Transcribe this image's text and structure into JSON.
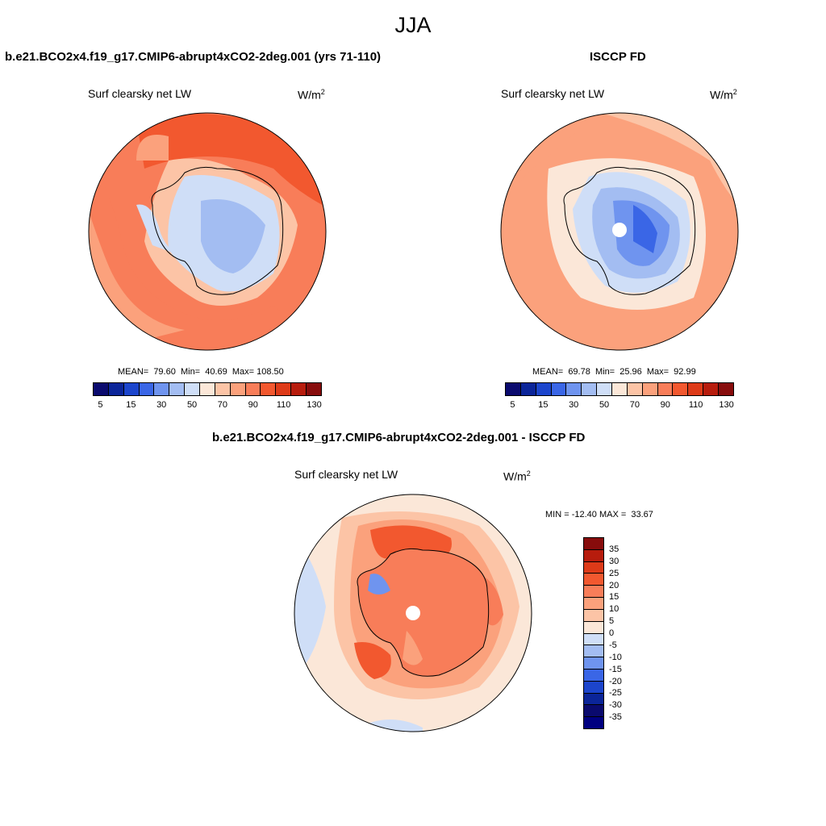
{
  "page_title": "JJA",
  "panels": [
    {
      "title": "b.e21.BCO2x4.f19_g17.CMIP6-abrupt4xCO2-2deg.001 (yrs 71-110)",
      "variable": "Surf clearsky net LW",
      "units_base": "W/m",
      "units_exp": "2",
      "stats": "MEAN=  79.60  Min=  40.69  Max= 108.50"
    },
    {
      "title": "ISCCP FD",
      "variable": "Surf clearsky net LW",
      "units_base": "W/m",
      "units_exp": "2",
      "stats": "MEAN=  69.78  Min=  25.96  Max=  92.99"
    },
    {
      "title": "b.e21.BCO2x4.f19_g17.CMIP6-abrupt4xCO2-2deg.001 - ISCCP FD",
      "variable": "Surf clearsky net LW",
      "units_base": "W/m",
      "units_exp": "2",
      "stats": "MIN = -12.40 MAX =  33.67"
    }
  ],
  "colorbar_main": {
    "colors": [
      "#0a0a6e",
      "#0b2599",
      "#1c45cc",
      "#3a66e6",
      "#6f94ef",
      "#a3bdf2",
      "#cfdef7",
      "#fbe7d8",
      "#fcc4a6",
      "#fba17c",
      "#f87d59",
      "#f2582f",
      "#dd3a18",
      "#b71c0d",
      "#870c0c"
    ],
    "labels": [
      "5",
      "15",
      "30",
      "50",
      "70",
      "90",
      "110",
      "130"
    ]
  },
  "colorbar_diff": {
    "colors": [
      "#870c0c",
      "#b71c0d",
      "#dd3a18",
      "#f2582f",
      "#f87d59",
      "#fba17c",
      "#fcc4a6",
      "#fbe7d8",
      "#cfdef7",
      "#a3bdf2",
      "#6f94ef",
      "#3a66e6",
      "#1c45cc",
      "#0b2599",
      "#0a0a6e",
      "#000080"
    ],
    "labels": [
      "35",
      "30",
      "25",
      "20",
      "15",
      "10",
      "5",
      "0",
      "-5",
      "-10",
      "-15",
      "-20",
      "-25",
      "-30",
      "-35"
    ]
  }
}
